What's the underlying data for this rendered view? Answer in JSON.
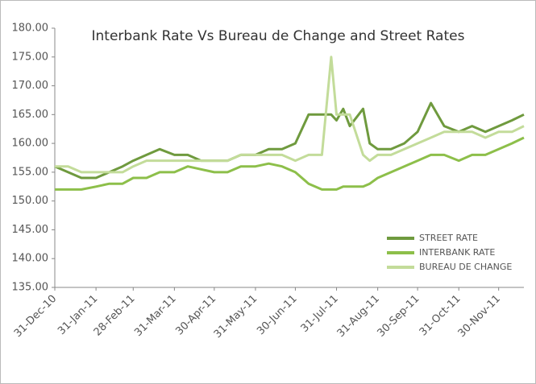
{
  "chart_data": {
    "type": "line",
    "title": "Interbank Rate Vs Bureau de Change and Street Rates",
    "x": [
      "31-Dec-10",
      "10-Jan-11",
      "20-Jan-11",
      "31-Jan-11",
      "10-Feb-11",
      "20-Feb-11",
      "28-Feb-11",
      "10-Mar-11",
      "20-Mar-11",
      "31-Mar-11",
      "10-Apr-11",
      "20-Apr-11",
      "30-Apr-11",
      "10-May-11",
      "20-May-11",
      "31-May-11",
      "10-Jun-11",
      "20-Jun-11",
      "30-Jun-11",
      "10-Jul-11",
      "20-Jul-11",
      "27-Jul-11",
      "31-Jul-11",
      "05-Aug-11",
      "10-Aug-11",
      "20-Aug-11",
      "25-Aug-11",
      "31-Aug-11",
      "10-Sep-11",
      "20-Sep-11",
      "30-Sep-11",
      "10-Oct-11",
      "20-Oct-11",
      "31-Oct-11",
      "10-Nov-11",
      "20-Nov-11",
      "30-Nov-11",
      "10-Dec-11",
      "19-Dec-11"
    ],
    "series": [
      {
        "name": "STREET RATE",
        "color": "#6f9a3e",
        "values": [
          156,
          155,
          154,
          154,
          155,
          156,
          157,
          158,
          159,
          158,
          158,
          157,
          157,
          157,
          158,
          158,
          159,
          159,
          160,
          165,
          165,
          165,
          164,
          166,
          163,
          166,
          160,
          159,
          159,
          160,
          162,
          167,
          163,
          162,
          163,
          162,
          163,
          164,
          165
        ]
      },
      {
        "name": "INTERBANK RATE",
        "color": "#8dbf4a",
        "values": [
          152,
          152,
          152,
          152.5,
          153,
          153,
          154,
          154,
          155,
          155,
          156,
          155.5,
          155,
          155,
          156,
          156,
          156.5,
          156,
          155,
          153,
          152,
          152,
          152,
          152.5,
          152.5,
          152.5,
          153,
          154,
          155,
          156,
          157,
          158,
          158,
          157,
          158,
          158,
          159,
          160,
          161
        ]
      },
      {
        "name": "BUREAU DE CHANGE",
        "color": "#c3dc9a",
        "values": [
          156,
          156,
          155,
          155,
          155,
          155,
          156,
          157,
          157,
          157,
          157,
          157,
          157,
          157,
          158,
          158,
          158,
          158,
          157,
          158,
          158,
          175,
          165,
          165,
          165,
          158,
          157,
          158,
          158,
          159,
          160,
          161,
          162,
          162,
          162,
          161,
          162,
          162,
          163
        ]
      }
    ],
    "xlim": [
      "31-Dec-10",
      "19-Dec-11"
    ],
    "xticks": [
      "31-Dec-10",
      "31-Jan-11",
      "28-Feb-11",
      "31-Mar-11",
      "30-Apr-11",
      "31-May-11",
      "30-Jun-11",
      "31-Jul-11",
      "31-Aug-11",
      "30-Sep-11",
      "31-Oct-11",
      "30-Nov-11"
    ],
    "ylim": [
      135,
      180
    ],
    "yticks": [
      {
        "value": 135,
        "label": "135.00"
      },
      {
        "value": 140,
        "label": "140.00"
      },
      {
        "value": 145,
        "label": "145.00"
      },
      {
        "value": 150,
        "label": "150.00"
      },
      {
        "value": 155,
        "label": "155.00"
      },
      {
        "value": 160,
        "label": "160.00"
      },
      {
        "value": 165,
        "label": "165.00"
      },
      {
        "value": 170,
        "label": "170.00"
      },
      {
        "value": 175,
        "label": "175.00"
      },
      {
        "value": 180,
        "label": "180.00"
      }
    ],
    "legend": "lower right"
  }
}
